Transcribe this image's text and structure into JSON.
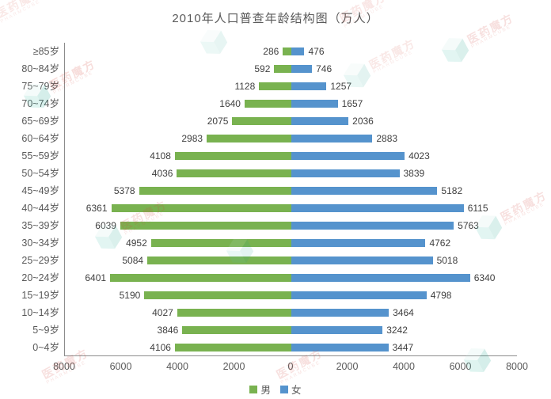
{
  "watermark": {
    "brand": "医药魔方",
    "sub": "PHARMCUBE",
    "text_color": "#d4483c",
    "cube_top": "#c8ebe4",
    "cube_left": "#52c5b2",
    "cube_right": "#1fa490"
  },
  "chart_data": {
    "type": "bar",
    "variant": "population-pyramid",
    "title": "2010年人口普查年龄结构图（万人）",
    "categories": [
      "≥85岁",
      "80~84岁",
      "75~79岁",
      "70~74岁",
      "65~69岁",
      "60~64岁",
      "55~59岁",
      "50~54岁",
      "45~49岁",
      "40~44岁",
      "35~39岁",
      "30~34岁",
      "25~29岁",
      "20~24岁",
      "15~19岁",
      "10~14岁",
      "5~9岁",
      "0~4岁"
    ],
    "series": [
      {
        "name": "男",
        "side": "left",
        "color": "#79b250",
        "values": [
          286,
          592,
          1128,
          1640,
          2075,
          2983,
          4108,
          4036,
          5378,
          6361,
          6039,
          4952,
          5084,
          6401,
          5190,
          4027,
          3846,
          4106
        ]
      },
      {
        "name": "女",
        "side": "right",
        "color": "#5593cd",
        "values": [
          476,
          746,
          1257,
          1657,
          2036,
          2883,
          4023,
          3839,
          5182,
          6115,
          5763,
          4762,
          5018,
          6340,
          4798,
          3464,
          3242,
          3447
        ]
      }
    ],
    "x_ticks": [
      "8000",
      "6000",
      "4000",
      "2000",
      "0",
      "2000",
      "4000",
      "6000",
      "8000"
    ],
    "xlim": [
      -8000,
      8000
    ],
    "grid": false,
    "legend_position": "bottom",
    "axis_color": "#8c8c8c",
    "label_color": "#404040",
    "tick_color": "#595959"
  }
}
